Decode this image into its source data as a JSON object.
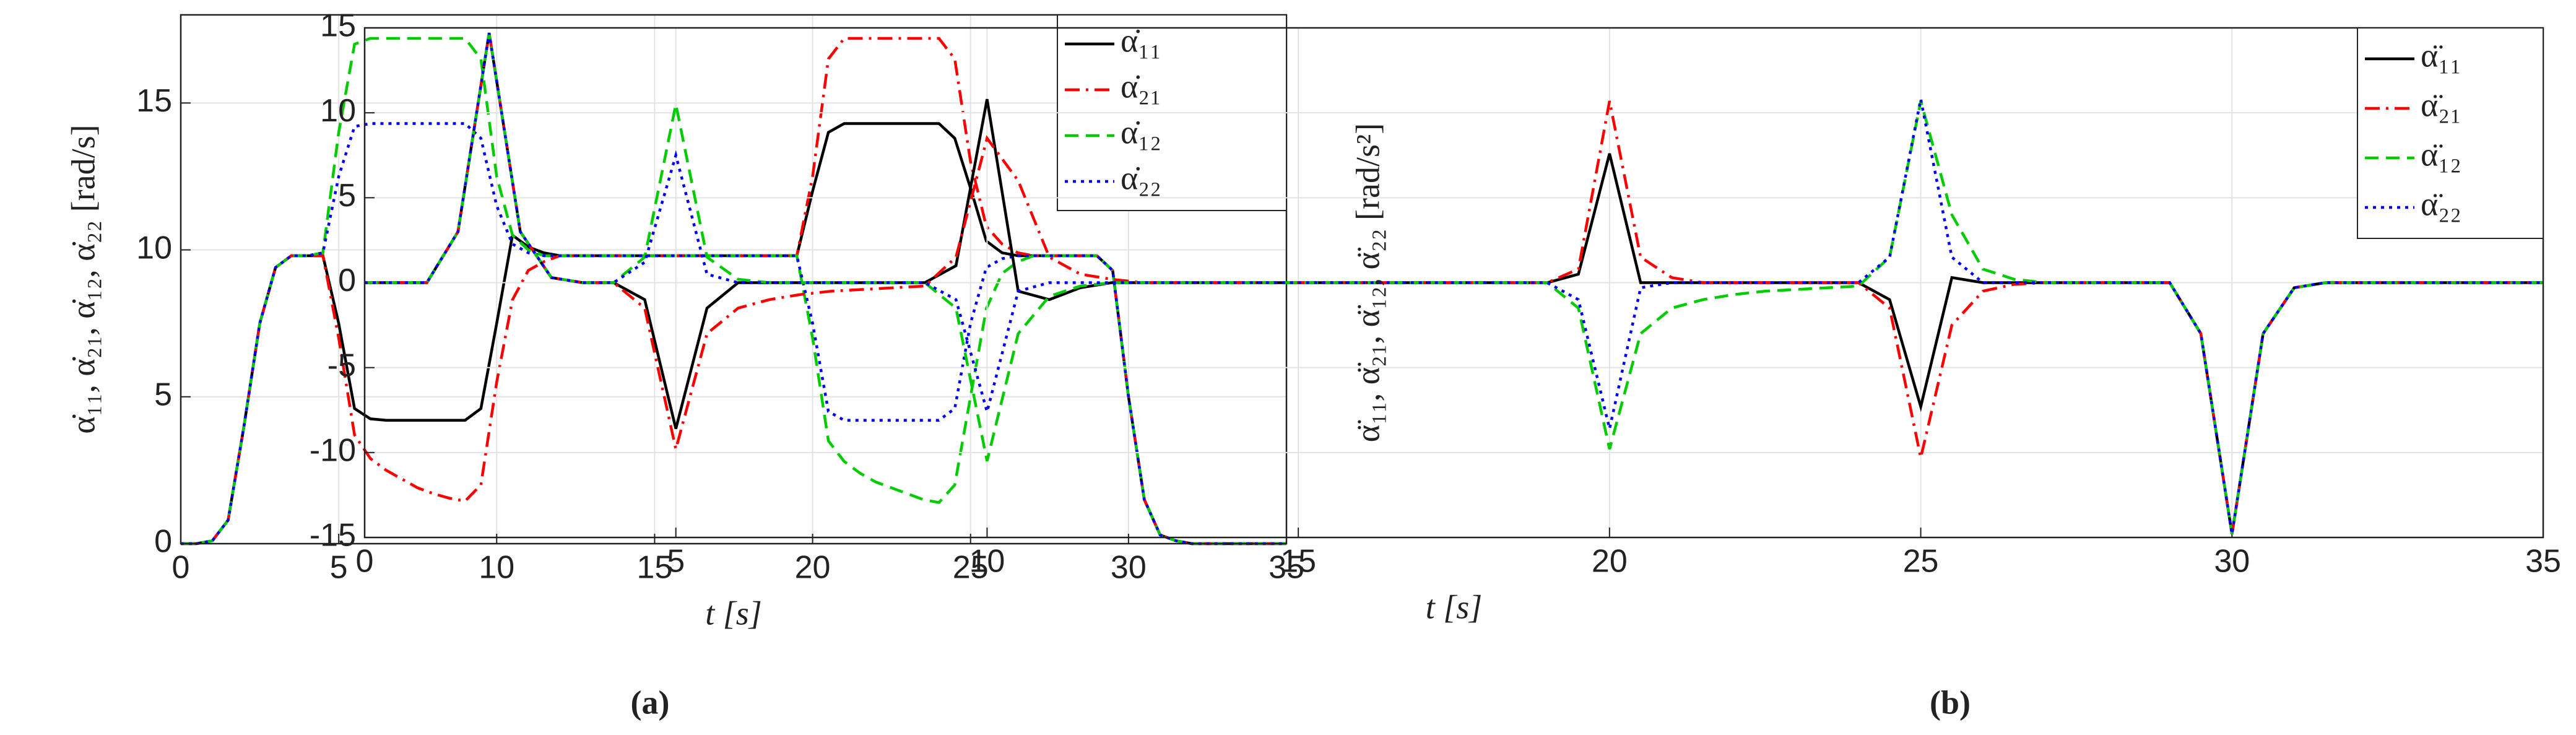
{
  "chart_data": [
    {
      "type": "line",
      "x_label": "t [s]",
      "y_label": "α̇₁₁, α̇₂₁, α̇₁₂, α̇₂₂  [rad/s]",
      "caption": "(a)",
      "xlim": [
        0,
        35
      ],
      "ylim": [
        0,
        18
      ],
      "xticks": [
        0,
        5,
        10,
        15,
        20,
        25,
        30,
        35
      ],
      "yticks": [
        0,
        5,
        10,
        15
      ],
      "grid": true,
      "legend": "upper right",
      "x": [
        0,
        0.5,
        1,
        1.5,
        2,
        2.5,
        3,
        3.5,
        4,
        4.5,
        5,
        5.5,
        6,
        6.5,
        7,
        7.5,
        8,
        8.5,
        9,
        9.5,
        10,
        10.5,
        11,
        11.5,
        12,
        12.5,
        13,
        13.5,
        14,
        14.5,
        15,
        15.5,
        16,
        16.5,
        17,
        17.5,
        18,
        18.5,
        19,
        19.5,
        20,
        20.5,
        21,
        21.5,
        22,
        22.5,
        23,
        23.5,
        24,
        24.5,
        25,
        25.5,
        26,
        26.5,
        27,
        27.5,
        28,
        28.5,
        29,
        29.5,
        30,
        30.5,
        31,
        31.5,
        32,
        32.5,
        33,
        33.5,
        34,
        34.5,
        35
      ],
      "series": [
        {
          "name": "α̇₁₁",
          "color": "#000000",
          "linestyle": "-",
          "values": [
            0,
            0,
            0.1,
            0.8,
            4,
            7.5,
            9.4,
            9.8,
            9.8,
            9.8,
            7.5,
            4.6,
            4.25,
            4.2,
            4.2,
            4.2,
            4.2,
            4.2,
            4.2,
            4.6,
            7.5,
            10.5,
            10.1,
            9.9,
            9.8,
            9.8,
            9.8,
            9.8,
            9.8,
            9.8,
            9.8,
            9.8,
            9.8,
            9.8,
            9.8,
            9.8,
            9.8,
            9.8,
            9.8,
            9.8,
            12,
            14,
            14.3,
            14.3,
            14.3,
            14.3,
            14.3,
            14.3,
            14.3,
            13.8,
            12.1,
            10.3,
            9.9,
            9.8,
            9.8,
            9.8,
            9.8,
            9.8,
            9.8,
            9.3,
            5,
            1.5,
            0.3,
            0.1,
            0,
            0,
            0,
            0,
            0,
            0,
            0
          ]
        },
        {
          "name": "α̇₂₁",
          "color": "#ff0000",
          "linestyle": "-.",
          "values": [
            0,
            0,
            0.1,
            0.8,
            4,
            7.5,
            9.4,
            9.8,
            9.8,
            9.8,
            7,
            3.7,
            2.9,
            2.5,
            2.2,
            1.9,
            1.7,
            1.55,
            1.45,
            2,
            5.5,
            8.3,
            9.3,
            9.6,
            9.8,
            9.8,
            9.8,
            9.8,
            9.8,
            9.8,
            9.8,
            9.8,
            9.8,
            9.8,
            9.8,
            9.8,
            9.8,
            9.8,
            9.8,
            9.8,
            12.5,
            16.5,
            17.2,
            17.2,
            17.2,
            17.2,
            17.2,
            17.2,
            17.2,
            16.5,
            13,
            10.8,
            10.2,
            9.9,
            9.8,
            9.8,
            9.8,
            9.8,
            9.8,
            9.3,
            5,
            1.5,
            0.3,
            0.1,
            0,
            0,
            0,
            0,
            0,
            0,
            0
          ]
        },
        {
          "name": "α̇₁₂",
          "color": "#00cc00",
          "linestyle": "--",
          "values": [
            0,
            0,
            0.1,
            0.8,
            4,
            7.5,
            9.4,
            9.8,
            9.8,
            9.9,
            14,
            17,
            17.2,
            17.2,
            17.2,
            17.2,
            17.2,
            17.2,
            17.2,
            16.5,
            12.5,
            10.5,
            10,
            9.8,
            9.8,
            9.8,
            9.8,
            9.8,
            9.8,
            9.8,
            9.8,
            9.8,
            9.8,
            9.8,
            9.8,
            9.8,
            9.8,
            9.8,
            9.8,
            9.8,
            7,
            3.5,
            2.8,
            2.4,
            2.1,
            1.9,
            1.7,
            1.5,
            1.4,
            2,
            5,
            8,
            9.2,
            9.6,
            9.8,
            9.8,
            9.8,
            9.8,
            9.8,
            9.3,
            5,
            1.5,
            0.3,
            0.1,
            0,
            0,
            0,
            0,
            0,
            0,
            0
          ]
        },
        {
          "name": "α̇₂₂",
          "color": "#0000ff",
          "linestyle": ":",
          "values": [
            0,
            0,
            0.1,
            0.8,
            4,
            7.5,
            9.4,
            9.8,
            9.8,
            9.9,
            12.5,
            14.2,
            14.3,
            14.3,
            14.3,
            14.3,
            14.3,
            14.3,
            14.3,
            13.8,
            11.5,
            10.2,
            9.9,
            9.8,
            9.8,
            9.8,
            9.8,
            9.8,
            9.8,
            9.8,
            9.8,
            9.8,
            9.8,
            9.8,
            9.8,
            9.8,
            9.8,
            9.8,
            9.8,
            9.8,
            7.5,
            4.5,
            4.2,
            4.2,
            4.2,
            4.2,
            4.2,
            4.2,
            4.2,
            4.6,
            7.5,
            9.4,
            9.7,
            9.8,
            9.8,
            9.8,
            9.8,
            9.8,
            9.8,
            9.3,
            5,
            1.5,
            0.3,
            0.1,
            0,
            0,
            0,
            0,
            0,
            0,
            0
          ]
        }
      ]
    },
    {
      "type": "line",
      "x_label": "t [s]",
      "y_label": "α̈₁₁, α̈₂₁, α̈₁₂, α̈₂₂  [rad/s²]",
      "caption": "(b)",
      "xlim": [
        0,
        35
      ],
      "ylim": [
        -15,
        15
      ],
      "xticks": [
        0,
        5,
        10,
        15,
        20,
        25,
        30,
        35
      ],
      "yticks": [
        -15,
        -10,
        -5,
        0,
        5,
        10,
        15
      ],
      "grid": true,
      "legend": "upper right",
      "x": [
        0,
        0.5,
        1,
        1.5,
        2,
        2.5,
        3,
        3.5,
        4,
        4.5,
        5,
        5.5,
        6,
        6.5,
        7,
        7.5,
        8,
        8.5,
        9,
        9.5,
        10,
        10.5,
        11,
        11.5,
        12,
        12.5,
        13,
        13.5,
        14,
        14.5,
        15,
        15.5,
        16,
        16.5,
        17,
        17.5,
        18,
        18.5,
        19,
        19.5,
        20,
        20.5,
        21,
        21.5,
        22,
        22.5,
        23,
        23.5,
        24,
        24.5,
        25,
        25.5,
        26,
        26.5,
        27,
        27.5,
        28,
        28.5,
        29,
        29.5,
        30,
        30.5,
        31,
        31.5,
        32,
        32.5,
        33,
        33.5,
        34,
        34.5,
        35
      ],
      "series": [
        {
          "name": "α̈₁₁",
          "color": "#000000",
          "linestyle": "-",
          "values": [
            0,
            0,
            0,
            3,
            14.7,
            3,
            0.3,
            0,
            0,
            -1,
            -8.6,
            -1.5,
            0,
            0,
            0,
            0,
            0,
            0,
            0,
            1,
            10.8,
            -0.5,
            -1,
            -0.3,
            0,
            0,
            0,
            0,
            0,
            0,
            0,
            0,
            0,
            0,
            0,
            0,
            0,
            0,
            0,
            0.5,
            7.6,
            0,
            0,
            0,
            0,
            0,
            0,
            0,
            0,
            -1,
            -7.3,
            0.3,
            0,
            0,
            0,
            0,
            0,
            0,
            0,
            -3,
            -14.8,
            -3,
            -0.3,
            0,
            0,
            0,
            0,
            0,
            0,
            0,
            0
          ]
        },
        {
          "name": "α̈₂₁",
          "color": "#ff0000",
          "linestyle": "-.",
          "values": [
            0,
            0,
            0,
            3,
            14.7,
            3,
            0.3,
            0,
            0,
            -1.5,
            -9.8,
            -3,
            -1.5,
            -1,
            -0.7,
            -0.5,
            -0.4,
            -0.3,
            -0.2,
            1.5,
            8.5,
            6,
            1.5,
            0.5,
            0.2,
            0,
            0,
            0,
            0,
            0,
            0,
            0,
            0,
            0,
            0,
            0,
            0,
            0,
            0,
            0.8,
            10.7,
            1.5,
            0.3,
            0,
            0,
            0,
            0,
            0,
            0,
            -1.5,
            -10.3,
            -2.5,
            -0.5,
            -0.1,
            0,
            0,
            0,
            0,
            0,
            -3,
            -14.8,
            -3,
            -0.3,
            0,
            0,
            0,
            0,
            0,
            0,
            0,
            0
          ]
        },
        {
          "name": "α̈₁₂",
          "color": "#00cc00",
          "linestyle": "--",
          "values": [
            0,
            0,
            0,
            3,
            14.7,
            3,
            0.3,
            0,
            0,
            1.5,
            10.5,
            1.5,
            0.2,
            0,
            0,
            0,
            0,
            0,
            0,
            -1.5,
            -10.5,
            -3,
            -0.8,
            -0.2,
            0,
            0,
            0,
            0,
            0,
            0,
            0,
            0,
            0,
            0,
            0,
            0,
            0,
            0,
            0,
            -1.5,
            -9.8,
            -3,
            -1.5,
            -1,
            -0.7,
            -0.5,
            -0.4,
            -0.3,
            -0.2,
            1.5,
            10.7,
            4,
            0.8,
            0.2,
            0,
            0,
            0,
            0,
            0,
            -3,
            -14.8,
            -3,
            -0.3,
            0,
            0,
            0,
            0,
            0,
            0,
            0,
            0
          ]
        },
        {
          "name": "α̈₂₂",
          "color": "#0000ff",
          "linestyle": ":",
          "values": [
            0,
            0,
            0,
            3,
            14.7,
            3,
            0.3,
            0,
            0,
            1.2,
            7.5,
            0.5,
            0,
            0,
            0,
            0,
            0,
            0,
            0,
            -1,
            -7.6,
            -0.5,
            0,
            0,
            0,
            0,
            0,
            0,
            0,
            0,
            0,
            0,
            0,
            0,
            0,
            0,
            0,
            0,
            0,
            -1,
            -8.6,
            -0.3,
            0,
            0,
            0,
            0,
            0,
            0,
            0,
            1.5,
            10.8,
            1.5,
            0,
            0,
            0,
            0,
            0,
            0,
            0,
            -3,
            -14.8,
            -3,
            -0.3,
            0,
            0,
            0,
            0,
            0,
            0,
            0,
            0
          ]
        }
      ]
    }
  ]
}
